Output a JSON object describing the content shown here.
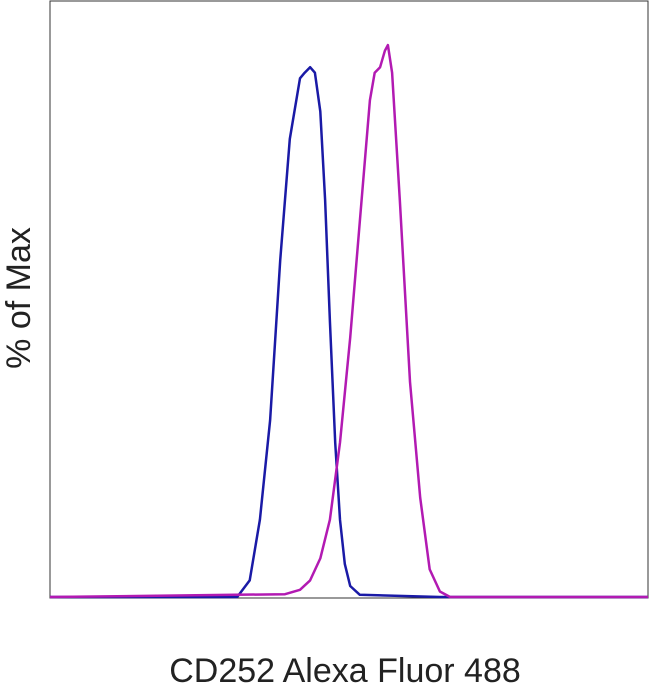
{
  "chart_data": {
    "type": "line",
    "x_label": "CD252 Alexa Fluor 488",
    "y_label": "% of Max",
    "xlim": [
      0,
      100
    ],
    "ylim": [
      0,
      108
    ],
    "series": [
      {
        "color": "#1a1aa6",
        "x": [
          0,
          31.3,
          33.4,
          35.1,
          36.8,
          38.5,
          40.1,
          41.8,
          42.6,
          43.5,
          44.3,
          45.2,
          46.0,
          46.8,
          47.7,
          48.5,
          49.3,
          50.2,
          51.8,
          65.2,
          100
        ],
        "values": [
          0,
          0,
          3,
          14,
          32,
          61,
          83,
          94,
          95,
          96,
          95,
          88,
          72,
          50,
          28,
          14,
          6,
          2,
          0.4,
          0,
          0
        ]
      },
      {
        "color": "#b21ab2",
        "x": [
          0,
          39.3,
          41.8,
          43.5,
          45.2,
          46.8,
          48.5,
          50.2,
          51.8,
          53.5,
          54.3,
          55.2,
          56.0,
          56.5,
          57.2,
          58.5,
          60.2,
          61.9,
          63.5,
          65.2,
          66.9,
          100
        ],
        "values": [
          0,
          0.5,
          1.3,
          3,
          7,
          14,
          28,
          47,
          68,
          90,
          95,
          96,
          99,
          100,
          95,
          72,
          39,
          18,
          5,
          1,
          0,
          0
        ]
      }
    ]
  }
}
